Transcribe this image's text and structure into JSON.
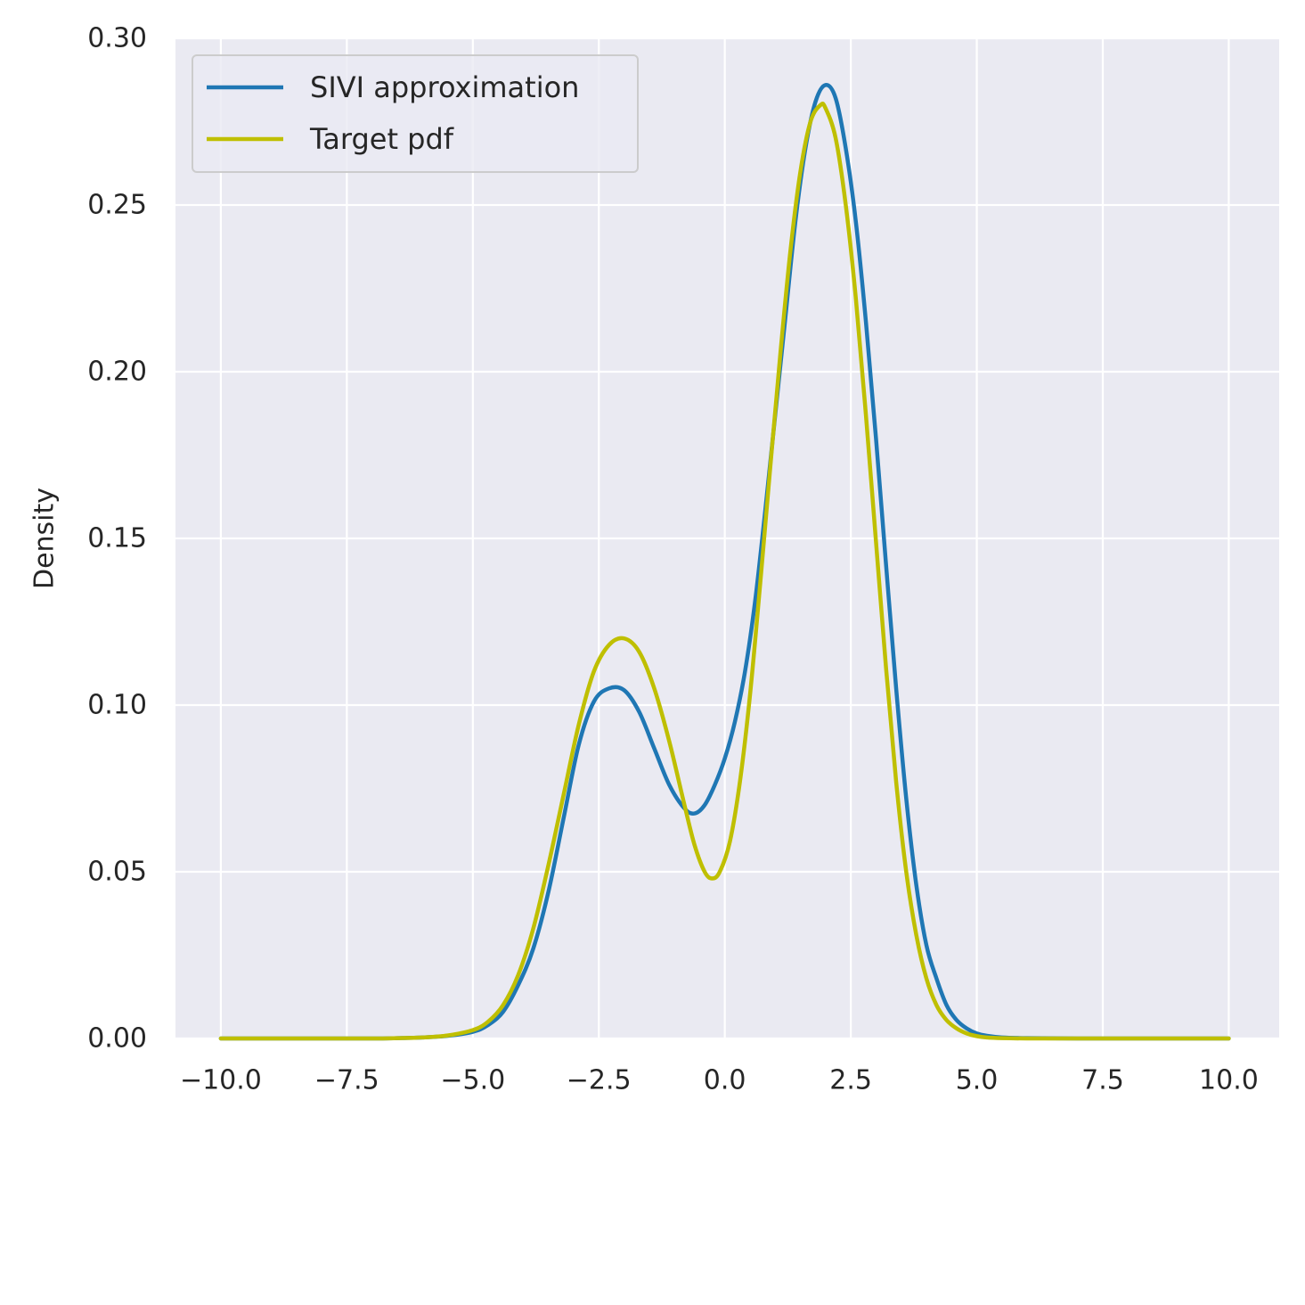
{
  "chart_data": {
    "type": "line",
    "title": "",
    "xlabel": "",
    "ylabel": "Density",
    "xlim": [
      -10.9,
      11.0
    ],
    "ylim": [
      0.0,
      0.3
    ],
    "grid": true,
    "legend_placement": "top-left",
    "x_ticks": [
      -10.0,
      -7.5,
      -5.0,
      -2.5,
      0.0,
      2.5,
      5.0,
      7.5,
      10.0
    ],
    "x_tick_labels": [
      "−10.0",
      "−7.5",
      "−5.0",
      "−2.5",
      "0.0",
      "2.5",
      "5.0",
      "7.5",
      "10.0"
    ],
    "y_ticks": [
      0.0,
      0.05,
      0.1,
      0.15,
      0.2,
      0.25,
      0.3
    ],
    "y_tick_labels": [
      "0.00",
      "0.05",
      "0.10",
      "0.15",
      "0.20",
      "0.25",
      "0.30"
    ],
    "colors": {
      "background": "#eaeaf2",
      "grid": "#ffffff"
    },
    "series": [
      {
        "name": "SIVI approximation",
        "color": "#1f77b4",
        "x": [
          -10,
          -8,
          -7,
          -6.5,
          -6,
          -5.5,
          -5,
          -4.7,
          -4.4,
          -4.1,
          -3.8,
          -3.5,
          -3.2,
          -2.9,
          -2.6,
          -2.3,
          -2.0,
          -1.7,
          -1.4,
          -1.1,
          -0.8,
          -0.6,
          -0.4,
          -0.2,
          0.0,
          0.2,
          0.4,
          0.6,
          0.8,
          1.0,
          1.2,
          1.4,
          1.6,
          1.8,
          2.0,
          2.2,
          2.4,
          2.6,
          2.8,
          3.0,
          3.2,
          3.4,
          3.6,
          3.8,
          4.0,
          4.2,
          4.4,
          4.6,
          4.8,
          5.0,
          5.2,
          5.5,
          6.0,
          7.0,
          8.0,
          10.0
        ],
        "y": [
          0.0,
          0.0,
          0.0,
          0.0001,
          0.0003,
          0.0008,
          0.002,
          0.004,
          0.008,
          0.016,
          0.027,
          0.044,
          0.066,
          0.088,
          0.101,
          0.105,
          0.1045,
          0.098,
          0.087,
          0.076,
          0.069,
          0.0675,
          0.07,
          0.076,
          0.084,
          0.095,
          0.11,
          0.131,
          0.158,
          0.187,
          0.216,
          0.245,
          0.267,
          0.281,
          0.286,
          0.282,
          0.267,
          0.245,
          0.215,
          0.18,
          0.142,
          0.105,
          0.072,
          0.046,
          0.028,
          0.018,
          0.01,
          0.0055,
          0.003,
          0.0015,
          0.0008,
          0.0003,
          0.0001,
          0.0,
          0.0,
          0.0
        ]
      },
      {
        "name": "Target pdf",
        "color": "#bfbf00",
        "x": [
          -10,
          -8,
          -7,
          -6.5,
          -6,
          -5.5,
          -5,
          -4.7,
          -4.4,
          -4.1,
          -3.8,
          -3.5,
          -3.2,
          -2.9,
          -2.6,
          -2.3,
          -2.0,
          -1.7,
          -1.4,
          -1.1,
          -0.8,
          -0.6,
          -0.4,
          -0.25,
          -0.1,
          0.1,
          0.3,
          0.5,
          0.7,
          0.9,
          1.1,
          1.3,
          1.5,
          1.7,
          1.9,
          2.0,
          2.2,
          2.4,
          2.6,
          2.8,
          3.0,
          3.2,
          3.4,
          3.6,
          3.8,
          4.0,
          4.2,
          4.4,
          4.6,
          4.8,
          5.0,
          5.2,
          5.5,
          6.0,
          7.0,
          8.0,
          10.0
        ],
        "y": [
          0.0,
          0.0,
          0.0,
          0.0001,
          0.0003,
          0.0009,
          0.0025,
          0.005,
          0.01,
          0.019,
          0.033,
          0.052,
          0.073,
          0.094,
          0.11,
          0.118,
          0.12,
          0.116,
          0.105,
          0.089,
          0.07,
          0.058,
          0.05,
          0.048,
          0.05,
          0.059,
          0.077,
          0.103,
          0.136,
          0.171,
          0.205,
          0.236,
          0.26,
          0.275,
          0.28,
          0.279,
          0.27,
          0.25,
          0.222,
          0.187,
          0.149,
          0.111,
          0.077,
          0.05,
          0.031,
          0.018,
          0.01,
          0.0055,
          0.003,
          0.0015,
          0.0007,
          0.0003,
          0.0001,
          0.0,
          0.0,
          0.0,
          0.0
        ]
      }
    ]
  }
}
